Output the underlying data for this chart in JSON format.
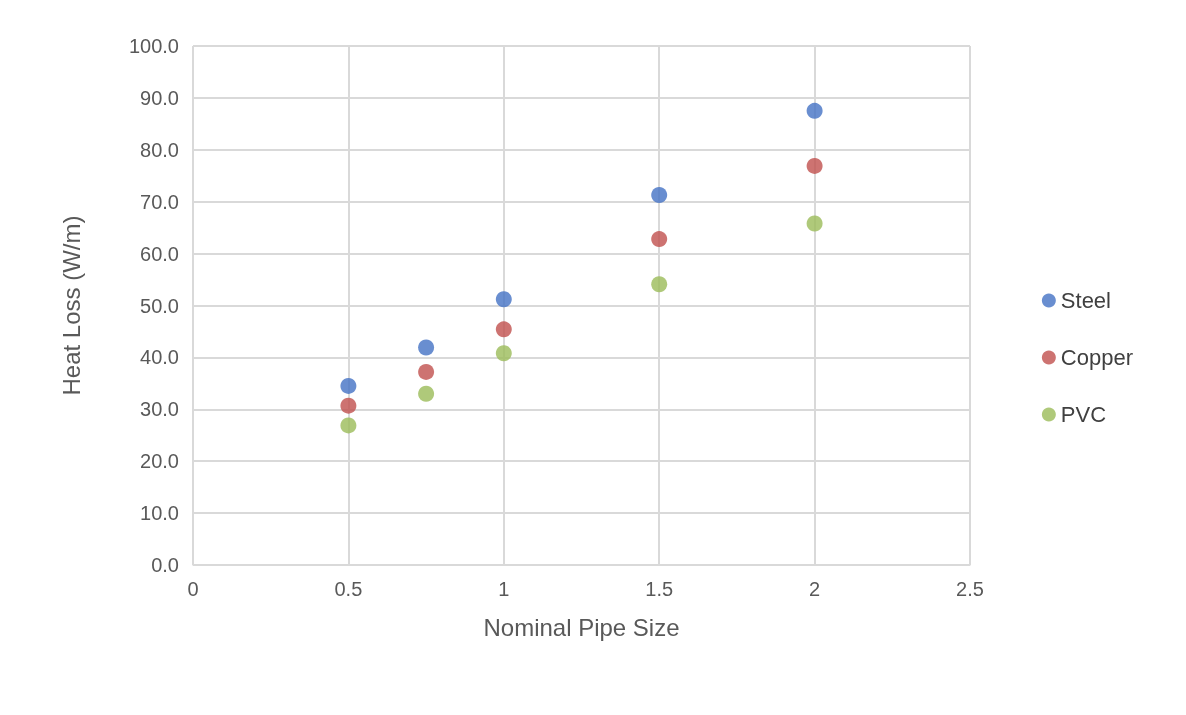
{
  "chart_data": {
    "type": "scatter",
    "xlabel": "Nominal Pipe Size",
    "ylabel": "Heat Loss (W/m)",
    "x": [
      0.5,
      0.75,
      1,
      1.5,
      2
    ],
    "series": [
      {
        "name": "Steel",
        "color": "#4472c4",
        "values": [
          34.5,
          41.9,
          51.2,
          71.3,
          87.5
        ]
      },
      {
        "name": "Copper",
        "color": "#c0504d",
        "values": [
          30.7,
          37.2,
          45.4,
          62.8,
          76.9
        ]
      },
      {
        "name": "PVC",
        "color": "#9bbb59",
        "values": [
          26.9,
          33.0,
          40.8,
          54.1,
          65.8
        ]
      }
    ],
    "xlim": [
      0,
      2.5
    ],
    "xticks": [
      0,
      0.5,
      1,
      1.5,
      2,
      2.5
    ],
    "ylim": [
      0,
      100
    ],
    "yticks": [
      {
        "value": 0,
        "label": "0.0"
      },
      {
        "value": 10,
        "label": "10.0"
      },
      {
        "value": 20,
        "label": "20.0"
      },
      {
        "value": 30,
        "label": "30.0"
      },
      {
        "value": 40,
        "label": "40.0"
      },
      {
        "value": 50,
        "label": "50.0"
      },
      {
        "value": 60,
        "label": "60.0"
      },
      {
        "value": 70,
        "label": "70.0"
      },
      {
        "value": 80,
        "label": "80.0"
      },
      {
        "value": 90,
        "label": "90.0"
      },
      {
        "value": 100,
        "label": "100.0"
      }
    ],
    "grid": true,
    "legend": "right",
    "marker": "circle"
  }
}
